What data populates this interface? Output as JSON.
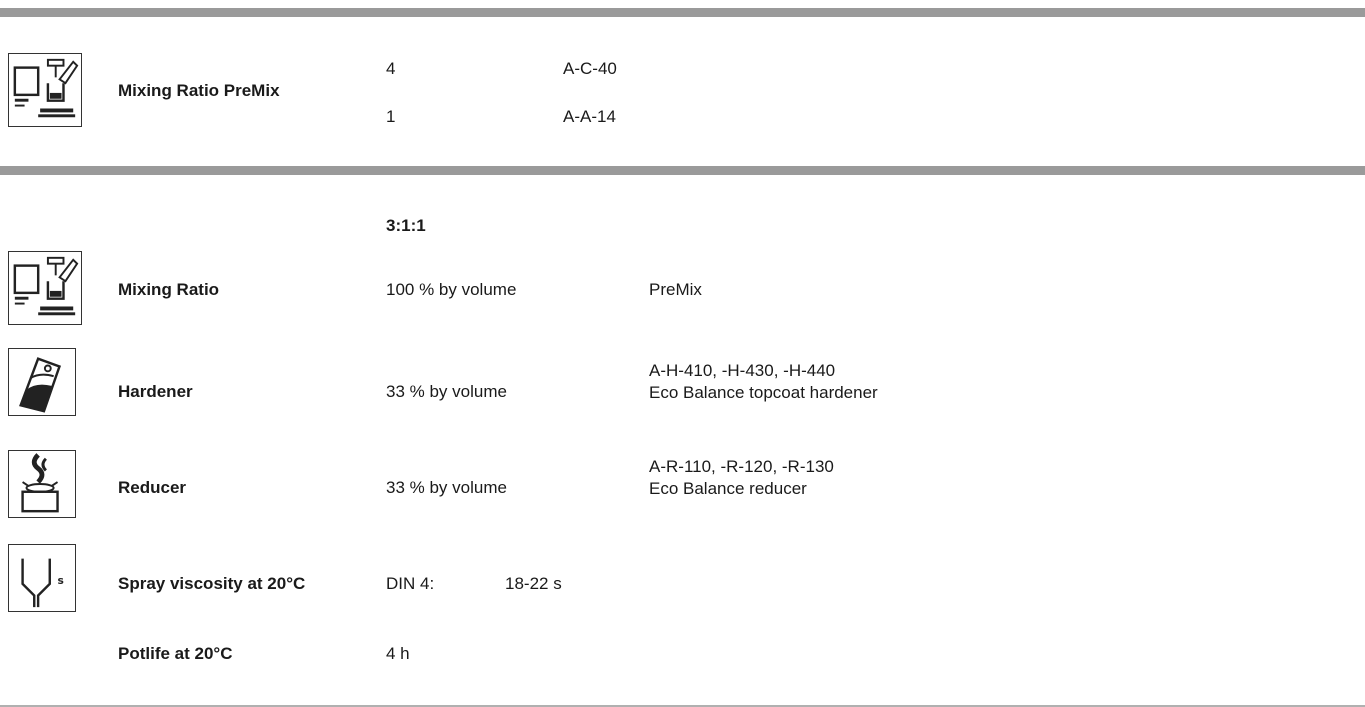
{
  "premix": {
    "label": "Mixing Ratio PreMix",
    "rows": [
      {
        "qty": "4",
        "product": "A-C-40"
      },
      {
        "qty": "1",
        "product": "A-A-14"
      }
    ]
  },
  "ratio": {
    "summary": "3:1:1",
    "rows": [
      {
        "label": "Mixing Ratio",
        "amount": "100 % by volume",
        "product_line1": "PreMix",
        "product_line2": "",
        "icon": "mixing-scale-icon"
      },
      {
        "label": "Hardener",
        "amount": "33 % by volume",
        "product_line1": "A-H-410, -H-430, -H-440",
        "product_line2": "Eco Balance topcoat hardener",
        "icon": "hardener-can-icon"
      },
      {
        "label": "Reducer",
        "amount": "33 % by volume",
        "product_line1": "A-R-110, -R-120, -R-130",
        "product_line2": "Eco Balance reducer",
        "icon": "reducer-icon"
      }
    ],
    "viscosity": {
      "label": "Spray viscosity at 20°C",
      "method": "DIN 4:",
      "value": "18-22 s",
      "icon": "viscosity-cup-icon"
    },
    "potlife": {
      "label": "Potlife at 20°C",
      "value": "4 h"
    }
  }
}
